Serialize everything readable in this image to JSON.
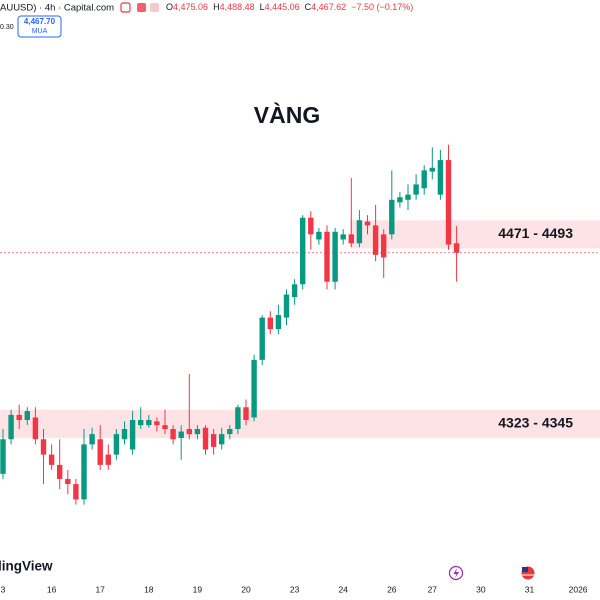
{
  "chart_data": {
    "type": "candlestick",
    "title": "VÀNG",
    "header": {
      "symbol": "AUUSD) · 4h · Capital.com",
      "ohlc": [
        {
          "key": "O",
          "value": "4,475.06"
        },
        {
          "key": "H",
          "value": "4,488.48"
        },
        {
          "key": "L",
          "value": "4,445.06"
        },
        {
          "key": "C",
          "value": "4,467.62"
        }
      ],
      "change": "−7.50 (−0.17%)",
      "spread": "0.30",
      "buy_label": "MUA"
    },
    "last_price": {
      "value": 4467.7,
      "label": "4,467.70"
    },
    "watermark": "lingView",
    "up_color": "#089981",
    "down_color": "#f23645",
    "zone_color": "#fde3e5",
    "ylim": [
      4216,
      4665
    ],
    "zones": [
      {
        "label": "4471 - 4493",
        "low": 4471,
        "high": 4493
      },
      {
        "label": "4323 - 4345",
        "low": 4323,
        "high": 4345
      }
    ],
    "categories": [
      "3",
      null,
      null,
      null,
      null,
      null,
      "16",
      null,
      null,
      null,
      null,
      null,
      "17",
      null,
      null,
      null,
      null,
      null,
      "18",
      null,
      null,
      null,
      null,
      null,
      "19",
      null,
      null,
      null,
      null,
      null,
      "20",
      null,
      null,
      null,
      null,
      null,
      "23",
      null,
      null,
      null,
      null,
      null,
      "24",
      null,
      null,
      null,
      null,
      null,
      "26",
      null,
      null,
      null,
      null,
      "27",
      null,
      null,
      null,
      null,
      null,
      "30",
      null,
      null,
      null,
      null,
      null,
      "31",
      null,
      null,
      null,
      null,
      null,
      "2026"
    ],
    "open": [
      4295,
      4322,
      4341,
      4337,
      4339,
      4322,
      4310,
      4302,
      4291,
      4287,
      4275,
      4318,
      4322,
      4310,
      4310,
      4322,
      4314,
      4333,
      4333,
      4336,
      4333,
      4330,
      4323,
      4330,
      4326,
      4331,
      4326,
      4318,
      4326,
      4330,
      4347,
      4339,
      4384,
      4417,
      4408,
      4417,
      4433,
      4443,
      4495,
      4478,
      4484,
      4445,
      4478,
      4482,
      4475,
      4492,
      4489,
      4482,
      4482,
      4507,
      4509,
      4513,
      4518,
      4531,
      4513,
      4540,
      4475.06,
      null,
      null,
      null,
      null,
      null,
      null,
      null,
      null,
      null,
      null,
      null,
      null,
      null,
      null,
      null
    ],
    "high": [
      4330,
      4345,
      4349,
      4347,
      4347,
      4330,
      4318,
      4322,
      4298,
      4291,
      4330,
      4331,
      4333,
      4318,
      4330,
      4336,
      4344,
      4347,
      4341,
      4339,
      4345,
      4333,
      4333,
      4373,
      4333,
      4333,
      4330,
      4331,
      4333,
      4349,
      4353,
      4388,
      4419,
      4422,
      4427,
      4439,
      4447,
      4497,
      4500,
      4487,
      4489,
      4487,
      4486,
      4526,
      4501,
      4497,
      4505,
      4486,
      4532,
      4515,
      4521,
      4529,
      4536,
      4550,
      4548,
      4552,
      4488.48,
      null,
      null,
      null,
      null,
      null,
      null,
      null,
      null,
      null,
      null,
      null,
      null,
      null,
      null,
      null
    ],
    "low": [
      4291,
      4318,
      4330,
      4333,
      4318,
      4287,
      4298,
      4283,
      4279,
      4271,
      4271,
      4314,
      4298,
      4298,
      4306,
      4318,
      4310,
      4330,
      4331,
      4328,
      4326,
      4318,
      4306,
      4322,
      4322,
      4310,
      4310,
      4314,
      4322,
      4326,
      4333,
      4336,
      4380,
      4404,
      4404,
      4411,
      4427,
      4439,
      4470,
      4474,
      4439,
      4439,
      4474,
      4472,
      4472,
      4482,
      4461,
      4448,
      4478,
      4503,
      4501,
      4509,
      4513,
      4525,
      4509,
      4470,
      4445.06,
      null,
      null,
      null,
      null,
      null,
      null,
      null,
      null,
      null,
      null,
      null,
      null,
      null,
      null,
      null
    ],
    "close": [
      4322,
      4341,
      4337,
      4344,
      4322,
      4310,
      4302,
      4291,
      4287,
      4275,
      4318,
      4326,
      4302,
      4302,
      4326,
      4330,
      4337,
      4337,
      4337,
      4333,
      4330,
      4322,
      4328,
      4326,
      4330,
      4314,
      4316,
      4326,
      4330,
      4347,
      4337,
      4384,
      4417,
      4408,
      4419,
      4435,
      4443,
      4495,
      4482,
      4484,
      4445,
      4484,
      4482,
      4475,
      4493,
      4489,
      4466,
      4464,
      4509,
      4511,
      4513,
      4521,
      4532,
      4534,
      4540,
      4474,
      4467.62,
      null,
      null,
      null,
      null,
      null,
      null,
      null,
      null,
      null,
      null,
      null,
      null,
      null,
      null,
      null
    ]
  }
}
